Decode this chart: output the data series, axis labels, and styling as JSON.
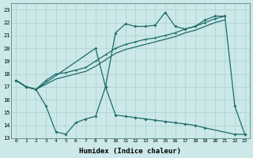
{
  "xlabel": "Humidex (Indice chaleur)",
  "bg_color": "#cce8e8",
  "line_color": "#1e6b6b",
  "grid_color": "#aad0d0",
  "xlim": [
    -0.5,
    23.5
  ],
  "ylim": [
    13,
    23.5
  ],
  "yticks": [
    13,
    14,
    15,
    16,
    17,
    18,
    19,
    20,
    21,
    22,
    23
  ],
  "xticks": [
    0,
    1,
    2,
    3,
    4,
    5,
    6,
    7,
    8,
    9,
    10,
    11,
    12,
    13,
    14,
    15,
    16,
    17,
    18,
    19,
    20,
    21,
    22,
    23
  ],
  "jagged_x": [
    0,
    1,
    2,
    8,
    9,
    10,
    11,
    12,
    13,
    14,
    15,
    16,
    17,
    18,
    19,
    20,
    21,
    22,
    23
  ],
  "jagged_y": [
    17.5,
    17.0,
    16.8,
    20.0,
    17.0,
    21.2,
    21.9,
    21.7,
    21.7,
    21.8,
    22.8,
    21.7,
    21.5,
    21.7,
    22.2,
    22.5,
    22.5,
    15.5,
    13.3
  ],
  "trend1_x": [
    0,
    1,
    2,
    3,
    4,
    5,
    6,
    7,
    8,
    9,
    10,
    11,
    12,
    13,
    14,
    15,
    16,
    17,
    18,
    19,
    20,
    21
  ],
  "trend1_y": [
    17.5,
    17.0,
    16.8,
    17.5,
    18.0,
    18.1,
    18.3,
    18.5,
    19.0,
    19.5,
    20.0,
    20.3,
    20.5,
    20.7,
    20.8,
    21.0,
    21.2,
    21.5,
    21.7,
    22.0,
    22.3,
    22.5
  ],
  "trend2_x": [
    0,
    1,
    2,
    3,
    4,
    5,
    6,
    7,
    8,
    9,
    10,
    11,
    12,
    13,
    14,
    15,
    16,
    17,
    18,
    19,
    20,
    21
  ],
  "trend2_y": [
    17.5,
    17.0,
    16.8,
    17.2,
    17.6,
    17.8,
    18.0,
    18.2,
    18.6,
    19.1,
    19.6,
    19.9,
    20.1,
    20.3,
    20.5,
    20.7,
    20.9,
    21.2,
    21.4,
    21.7,
    22.0,
    22.2
  ],
  "lower_x": [
    0,
    1,
    2,
    3,
    4,
    5,
    6,
    7,
    8,
    9,
    10,
    11,
    12,
    13,
    14,
    15,
    16,
    17,
    18,
    19,
    22,
    23
  ],
  "lower_y": [
    17.5,
    17.0,
    16.8,
    15.5,
    13.5,
    13.3,
    14.2,
    14.5,
    14.7,
    17.0,
    14.8,
    14.7,
    14.6,
    14.5,
    14.4,
    14.3,
    14.2,
    14.1,
    14.0,
    13.8,
    13.3,
    13.3
  ]
}
